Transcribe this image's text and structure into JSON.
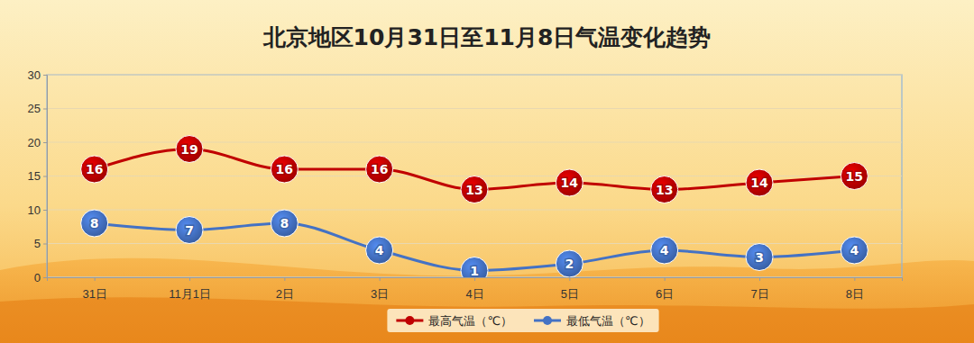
{
  "chart_data": {
    "type": "line",
    "title": "北京地区10月31日至11月8日气温变化趋势",
    "categories": [
      "31日",
      "11月1日",
      "2日",
      "3日",
      "4日",
      "5日",
      "6日",
      "7日",
      "8日"
    ],
    "series": [
      {
        "name": "最高气温（℃）",
        "color": "#c00000",
        "marker": "circle",
        "values": [
          16,
          19,
          16,
          16,
          13,
          14,
          13,
          14,
          15
        ]
      },
      {
        "name": "最低气温（℃）",
        "color": "#4472c4",
        "marker": "circle",
        "values": [
          8,
          7,
          8,
          4,
          1,
          2,
          4,
          3,
          4
        ]
      }
    ],
    "ylim": [
      0,
      30
    ],
    "yticks": [
      0,
      5,
      10,
      15,
      20,
      25,
      30
    ],
    "grid": true,
    "legend": "bottom",
    "data_labels": true
  }
}
